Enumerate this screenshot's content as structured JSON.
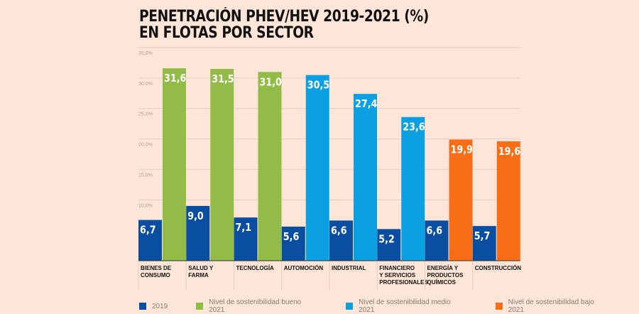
{
  "chart_data": {
    "type": "bar",
    "title": "PENETRACIÓN PHEV/HEV 2019-2021 (%)",
    "subtitle": "EN FLOTAS POR SECTOR",
    "categories": [
      "BIENES DE CONSUMO",
      "SALUD Y FARMA",
      "TECNOLOGÍA",
      "AUTOMOCIÓN",
      "INDUSTRIAL",
      "FINANCIERO Y SERVICIOS PROFESIONALES",
      "ENERGÍA Y PRODUCTOS QUÍMICOS",
      "CONSTRUCCIÓN"
    ],
    "series": [
      {
        "name": "2019",
        "values": [
          6.7,
          9.0,
          7.1,
          5.6,
          6.6,
          5.2,
          6.6,
          5.7
        ],
        "color": "#0a4ea2"
      },
      {
        "name": "2021",
        "values": [
          31.6,
          31.5,
          31.0,
          30.5,
          27.4,
          23.6,
          19.9,
          19.6
        ],
        "colors": [
          "#93bb47",
          "#93bb47",
          "#93bb47",
          "#0aa0e2",
          "#0aa0e2",
          "#0aa0e2",
          "#f96d17",
          "#f96d17"
        ]
      }
    ],
    "data_labels_2019": [
      "6,7",
      "9,0",
      "7,1",
      "5,6",
      "6,6",
      "5,2",
      "6,6",
      "5,7"
    ],
    "data_labels_2021": [
      "31,6",
      "31,5",
      "31,0",
      "30,5",
      "27,4",
      "23,6",
      "19,9",
      "19,6"
    ],
    "yticks": [
      "10,0%",
      "15,0%",
      "20,0%",
      "25,0%",
      "30,0%",
      "35,0%"
    ],
    "ylim": [
      0,
      35
    ],
    "grid": true,
    "legend": [
      {
        "label": "2019",
        "color": "#0a4ea2"
      },
      {
        "label": "Nivel de sostenibilidad bueno 2021",
        "color": "#93bb47"
      },
      {
        "label": "Nivel de sostenibilidad medio 2021",
        "color": "#0aa0e2"
      },
      {
        "label": "Nivel de sostenibilidad bajo 2021",
        "color": "#f96d17"
      }
    ],
    "legend_position": "bottom"
  }
}
